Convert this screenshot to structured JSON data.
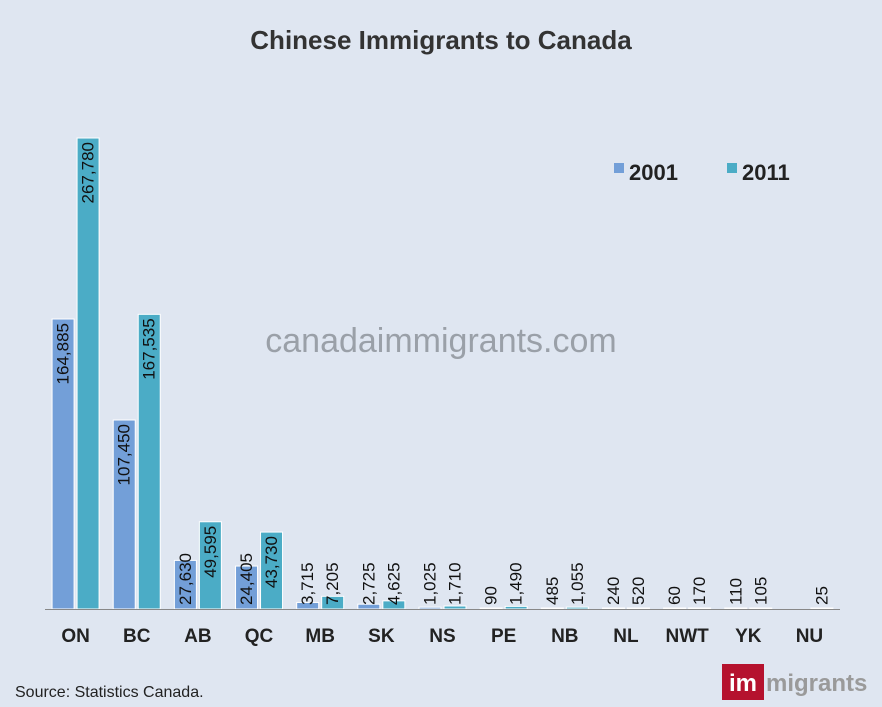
{
  "chart_data": {
    "type": "bar",
    "title": "Chinese Immigrants to Canada",
    "categories": [
      "ON",
      "BC",
      "AB",
      "QC",
      "MB",
      "SK",
      "NS",
      "PE",
      "NB",
      "NL",
      "NWT",
      "YK",
      "NU"
    ],
    "series": [
      {
        "name": "2001",
        "color": "#739fd8",
        "values": [
          164885,
          107450,
          27630,
          24405,
          3715,
          2725,
          1025,
          90,
          485,
          240,
          60,
          110,
          null
        ],
        "labels": [
          "164,885",
          "107,450",
          "27,630",
          "24,405",
          "3,715",
          "2,725",
          "1,025",
          "90",
          "485",
          "240",
          "60",
          "110",
          ""
        ]
      },
      {
        "name": "2011",
        "color": "#4bacc6",
        "values": [
          267780,
          167535,
          49595,
          43730,
          7205,
          4625,
          1710,
          1490,
          1055,
          520,
          170,
          105,
          25
        ],
        "labels": [
          "267,780",
          "167,535",
          "49,595",
          "43,730",
          "7,205",
          "4,625",
          "1,710",
          "1,490",
          "1,055",
          "520",
          "170",
          "105",
          "25"
        ]
      }
    ],
    "ylim": [
      0,
      280000
    ],
    "grid": false,
    "legend_position": "top-right",
    "xlabel": "",
    "ylabel": ""
  },
  "watermark": "canadaimmigrants.com",
  "source": "Source: Statistics Canada.",
  "logo": {
    "part1": "im",
    "part2": "migrants"
  }
}
